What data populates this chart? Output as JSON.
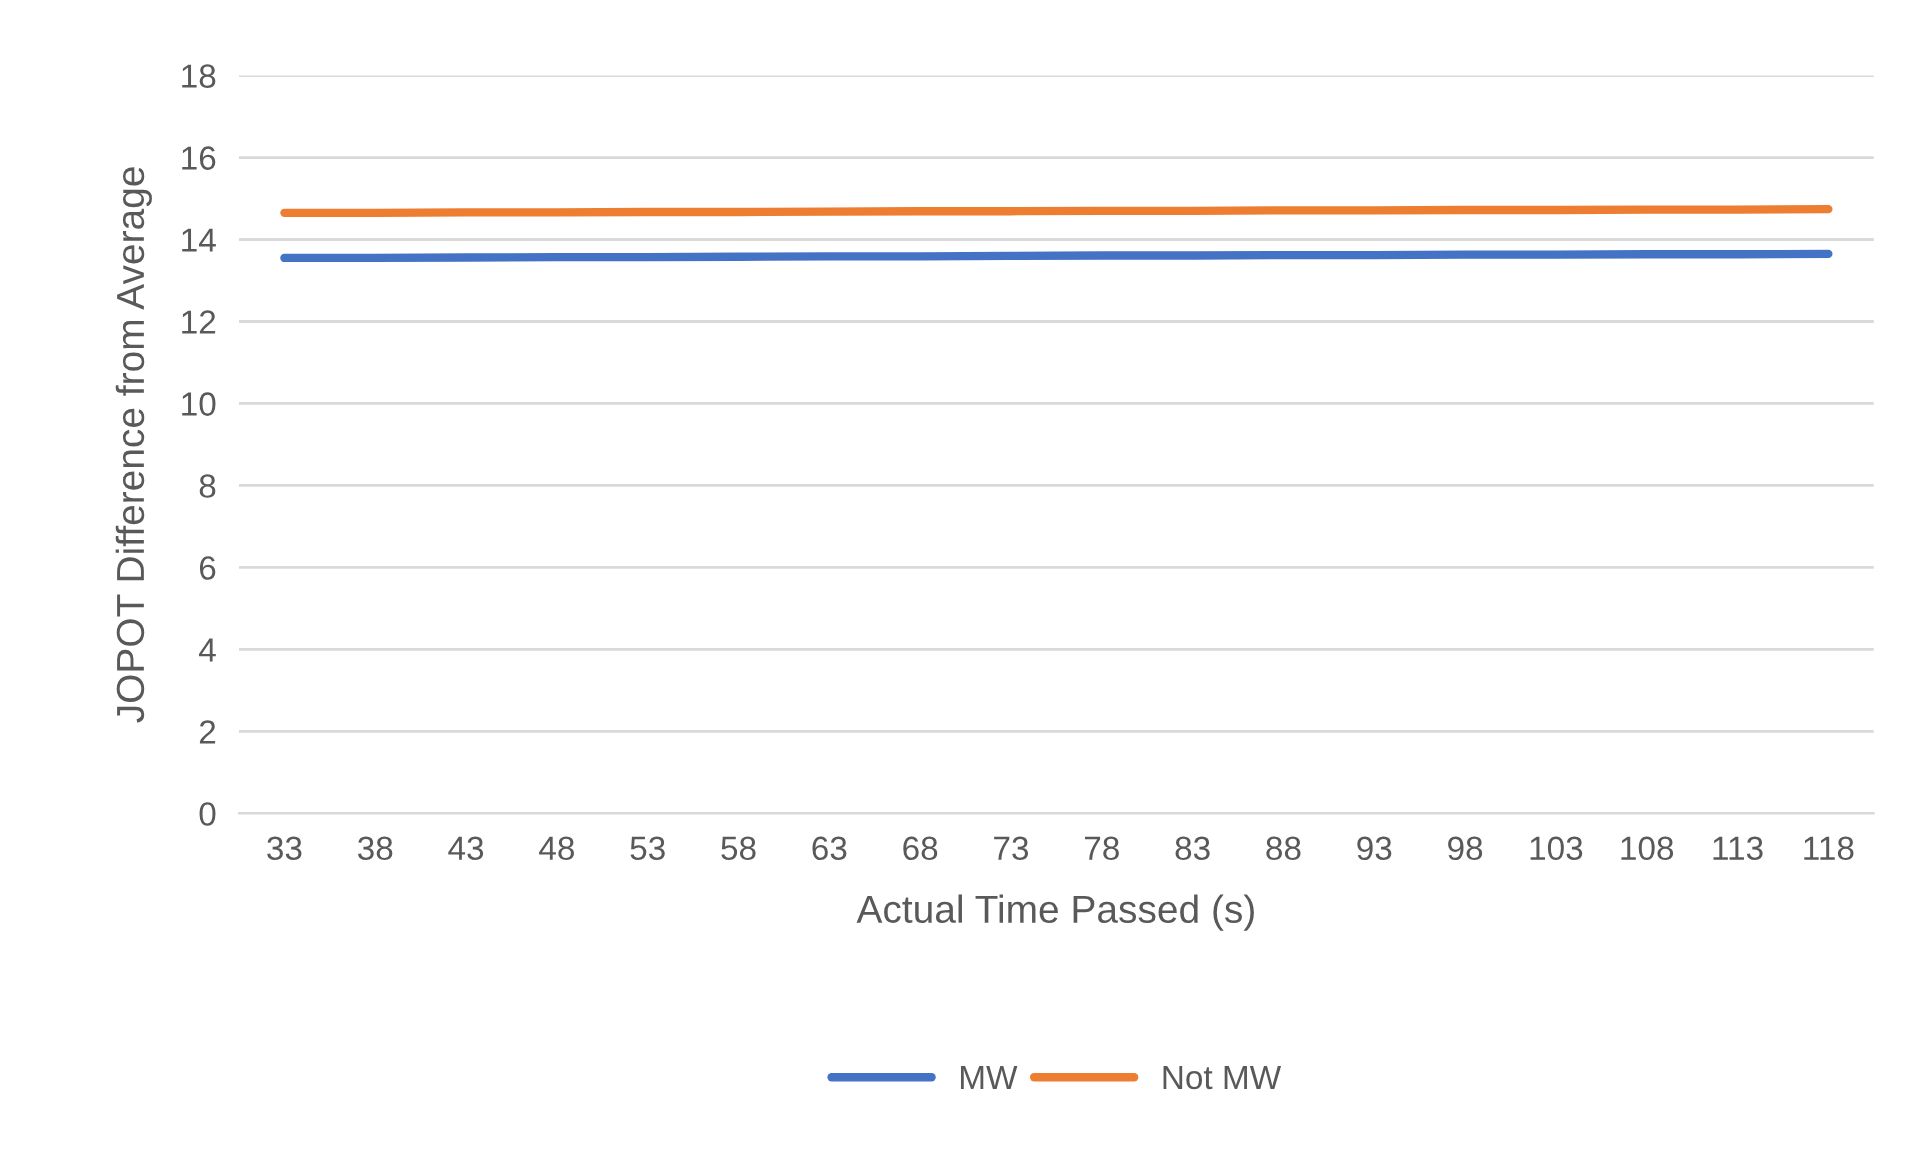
{
  "chart_data": {
    "type": "line",
    "xlabel": "Actual Time Passed (s)",
    "ylabel": "JOPOT Difference from Average",
    "categories": [
      "33",
      "38",
      "43",
      "48",
      "53",
      "58",
      "63",
      "68",
      "73",
      "78",
      "83",
      "88",
      "93",
      "98",
      "103",
      "108",
      "113",
      "118"
    ],
    "series": [
      {
        "name": "MW",
        "color": "#4472c4",
        "values": [
          13.55,
          13.55,
          13.56,
          13.57,
          13.57,
          13.58,
          13.59,
          13.59,
          13.6,
          13.61,
          13.61,
          13.62,
          13.62,
          13.63,
          13.63,
          13.64,
          13.64,
          13.65
        ]
      },
      {
        "name": "Not MW",
        "color": "#ed7d31",
        "values": [
          14.65,
          14.65,
          14.66,
          14.66,
          14.67,
          14.67,
          14.68,
          14.69,
          14.69,
          14.7,
          14.7,
          14.71,
          14.71,
          14.72,
          14.72,
          14.73,
          14.73,
          14.74
        ]
      }
    ],
    "ylim": [
      0,
      18
    ],
    "yticks": [
      0,
      2,
      4,
      6,
      8,
      10,
      12,
      14,
      16,
      18
    ],
    "grid": "y",
    "legend": "bottom",
    "marker": "none",
    "line_style": "solid"
  }
}
